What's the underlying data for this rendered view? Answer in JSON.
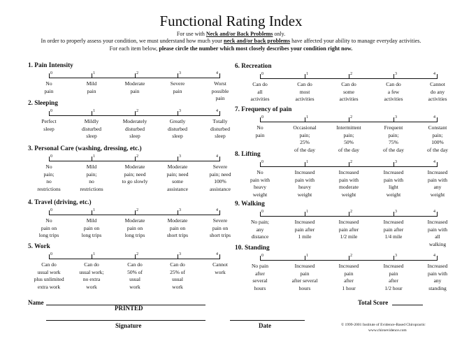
{
  "title": "Functional Rating Index",
  "subtitle": {
    "prefix": "For use with ",
    "emph": "Neck and/or Back Problems",
    "suffix": " only."
  },
  "intro": {
    "line1_a": "In order to properly assess your condition, we must understand how much your ",
    "line1_emph": "neck and/or back problems",
    "line1_b": " have affected your ability to manage everyday activities.",
    "line2_a": "For each item below, ",
    "line2_emph": "please circle the number which most closely describes your condition right now."
  },
  "scale_numbers": [
    "0",
    "1",
    "2",
    "3",
    "4"
  ],
  "sections": [
    {
      "title": "1. Pain Intensity",
      "options": [
        "No\npain",
        "Mild\npain",
        "Moderate\npain",
        "Severe\npain",
        "Worst\npossible\npain"
      ]
    },
    {
      "title": "2. Sleeping",
      "options": [
        "Perfect\nsleep",
        "Mildly\ndisturbed\nsleep",
        "Moderately\ndisturbed\nsleep",
        "Greatly\ndisturbed\nsleep",
        "Totally\ndisturbed\nsleep"
      ]
    },
    {
      "title": "3. Personal Care (washing, dressing, etc.)",
      "options": [
        "No\npain;\nno\nrestrictions",
        "Mild\npain;\nno\nrestrictions",
        "Moderate\npain; need\nto go slowly",
        "Moderate\npain; need\nsome\nassistance",
        "Severe\npain; need\n100%\nassistance"
      ]
    },
    {
      "title": "4. Travel (driving, etc.)",
      "options": [
        "No\npain on\nlong trips",
        "Mild\npain on\nlong trips",
        "Moderate\npain on\nlong trips",
        "Moderate\npain on\nshort trips",
        "Severe\npain on\nshort trips"
      ]
    },
    {
      "title": "5. Work",
      "options": [
        "Can do\nusual work\nplus unlimited\nextra work",
        "Can do\nusual work;\nno extra\nwork",
        "Can do\n50% of\nusual\nwork",
        "Can do\n25% of\nusual\nwork",
        "Cannot\nwork"
      ]
    },
    {
      "title": "6. Recreation",
      "options": [
        "Can do\nall\nactivities",
        "Can do\nmost\nactivities",
        "Can do\nsome\nactivities",
        "Can do\na few\nactivities",
        "Cannot\ndo any\nactivities"
      ]
    },
    {
      "title": "7. Frequency of pain",
      "options": [
        "No\npain",
        "Occasional\npain;\n25%\nof the day",
        "Intermittent\npain;\n50%\nof the day",
        "Frequent\npain;\n75%\nof the day",
        "Constant\npain;\n100%\nof the day"
      ]
    },
    {
      "title": "8. Lifting",
      "options": [
        "No\npain with\nheavy\nweight",
        "Increased\npain with\nheavy\nweight",
        "Increased\npain with\nmoderate\nweight",
        "Increased\npain with\nlight\nweight",
        "Increased\npain with\nany\nweight"
      ]
    },
    {
      "title": "9. Walking",
      "options": [
        "No pain;\nany\ndistance",
        "Increased\npain after\n1 mile",
        "Increased\npain after\n1/2 mile",
        "Increased\npain after\n1/4 mile",
        "Increased\npain with\nall\nwalking"
      ]
    },
    {
      "title": "10. Standing",
      "options": [
        "No pain\nafter\nseveral\nhours",
        "Increased\npain\nafter several\nhours",
        "Increased\npain\nafter\n1 hour",
        "Increased\npain\nafter\n1/2 hour",
        "Increased\npain with\nany\nstanding"
      ]
    }
  ],
  "footer": {
    "name_label": "Name",
    "printed_label": "PRINTED",
    "total_score_label": "Total Score",
    "signature_label": "Signature",
    "date_label": "Date",
    "copyright_line1": "© 1999-2001  Institute of Evidence-Based Chiropractic",
    "copyright_line2": "www.chiroevidence.com"
  }
}
